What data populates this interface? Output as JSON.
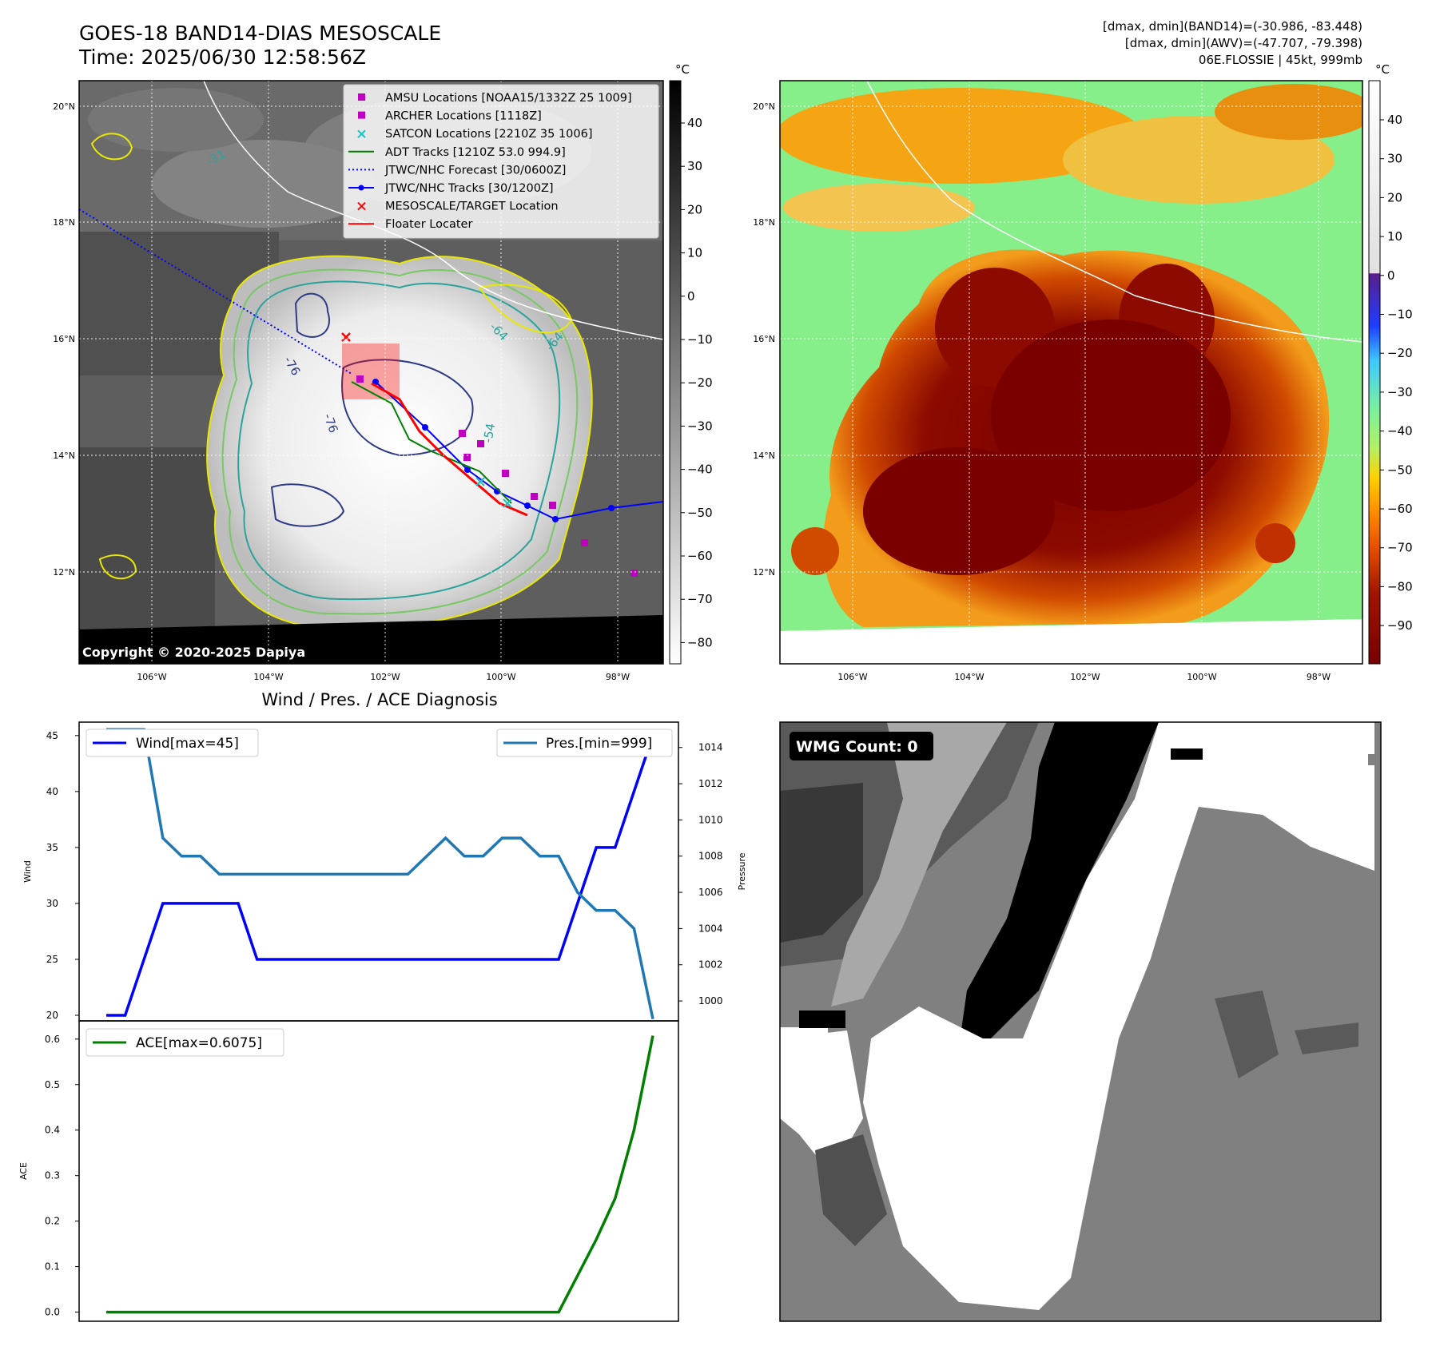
{
  "header": {
    "title": "GOES-18 BAND14-DIAS MESOSCALE",
    "time": "Time: 2025/06/30 12:58:56Z",
    "stats_band14": "[dmax, dmin](BAND14)=(-30.986, -83.448)",
    "stats_awv": "[dmax, dmin](AWV)=(-47.707, -79.398)",
    "storm": "06E.FLOSSIE | 45kt, 999mb"
  },
  "maps": {
    "lon_ticks": [
      "106°W",
      "104°W",
      "102°W",
      "100°W",
      "98°W"
    ],
    "lat_ticks": [
      "20°N",
      "18°N",
      "16°N",
      "14°N",
      "12°N"
    ],
    "copyright": "Copyright © 2020-2025 Dapiya",
    "colorbar1": {
      "unit": "°C",
      "ticks": [
        "40",
        "30",
        "20",
        "10",
        "0",
        "−10",
        "−20",
        "−30",
        "−40",
        "−50",
        "−60",
        "−70",
        "−80"
      ]
    },
    "colorbar2": {
      "unit": "°C",
      "ticks": [
        "40",
        "30",
        "20",
        "10",
        "0",
        "−10",
        "−20",
        "−30",
        "−40",
        "−50",
        "−60",
        "−70",
        "−80",
        "−90"
      ]
    },
    "contour_labels": [
      "-76",
      "-64",
      "-64",
      "-54",
      "-31",
      "-76"
    ],
    "legend": [
      {
        "label": "AMSU Locations [NOAA15/1332Z 25 1009]",
        "icon": "square-marker",
        "color": "#c000c0"
      },
      {
        "label": "ARCHER Locations [1118Z]",
        "icon": "square-marker",
        "color": "#c000c0"
      },
      {
        "label": "SATCON Locations [2210Z 35 1006]",
        "icon": "x-marker",
        "color": "#1fbfbf"
      },
      {
        "label": "ADT Tracks [1210Z 53.0 994.9]",
        "icon": "line",
        "color": "#008000"
      },
      {
        "label": "JTWC/NHC Forecast [30/0600Z]",
        "icon": "dotted-line",
        "color": "#0000ff"
      },
      {
        "label": "JTWC/NHC Tracks [30/1200Z]",
        "icon": "line-dot",
        "color": "#0000ff"
      },
      {
        "label": "MESOSCALE/TARGET Location",
        "icon": "x-marker",
        "color": "#ff0000"
      },
      {
        "label": "Floater Locater",
        "icon": "line",
        "color": "#ff0000"
      }
    ]
  },
  "diag": {
    "title": "Wind / Pres. / ACE Diagnosis",
    "wind_legend": "Wind[max=45]",
    "pres_legend": "Pres.[min=999]",
    "ace_legend": "ACE[max=0.6075]",
    "wind_axis": "Wind",
    "pres_axis": "Pressure",
    "ace_axis": "ACE",
    "wind_ticks": [
      "45",
      "40",
      "35",
      "30",
      "25",
      "20"
    ],
    "pres_ticks": [
      "1014",
      "1012",
      "1010",
      "1008",
      "1006",
      "1004",
      "1002",
      "1000"
    ],
    "ace_ticks": [
      "0.6",
      "0.5",
      "0.4",
      "0.3",
      "0.2",
      "0.1",
      "0.0"
    ]
  },
  "wmg": {
    "label": "WMG Count: 0"
  },
  "colors": {
    "wind": "#0000ff",
    "pressure": "#1f77b4",
    "ace": "#008000",
    "floater": "#ff0000",
    "mark": "#c000c0"
  },
  "chart_data": [
    {
      "type": "line",
      "title": "Wind / Pres. / ACE Diagnosis",
      "ylabel": "Wind",
      "ylim": [
        19.5,
        46.2
      ],
      "series": [
        {
          "name": "Wind[max=45]",
          "values": [
            20,
            20,
            25,
            30,
            30,
            30,
            30,
            30,
            25,
            25,
            25,
            25,
            25,
            25,
            25,
            25,
            25,
            25,
            25,
            25,
            25,
            25,
            25,
            25,
            25,
            30,
            35,
            35,
            40,
            45
          ]
        }
      ]
    },
    {
      "type": "line",
      "ylabel": "Pressure",
      "ylim": [
        998.9,
        1015.4
      ],
      "series": [
        {
          "name": "Pres.[min=999]",
          "values": [
            1015,
            1015,
            1015,
            1009,
            1008,
            1008,
            1007,
            1007,
            1007,
            1007,
            1007,
            1007,
            1007,
            1007,
            1007,
            1007,
            1007,
            1008,
            1009,
            1008,
            1008,
            1009,
            1009,
            1008,
            1008,
            1006,
            1005,
            1005,
            1004,
            999
          ]
        }
      ]
    },
    {
      "type": "line",
      "ylabel": "ACE",
      "ylim": [
        -0.02,
        0.64
      ],
      "series": [
        {
          "name": "ACE[max=0.6075]",
          "values": [
            0,
            0,
            0,
            0,
            0,
            0,
            0,
            0,
            0,
            0,
            0,
            0,
            0,
            0,
            0,
            0,
            0,
            0,
            0,
            0,
            0,
            0,
            0,
            0,
            0,
            0.08,
            0.16,
            0.25,
            0.4,
            0.6075
          ]
        }
      ]
    }
  ]
}
